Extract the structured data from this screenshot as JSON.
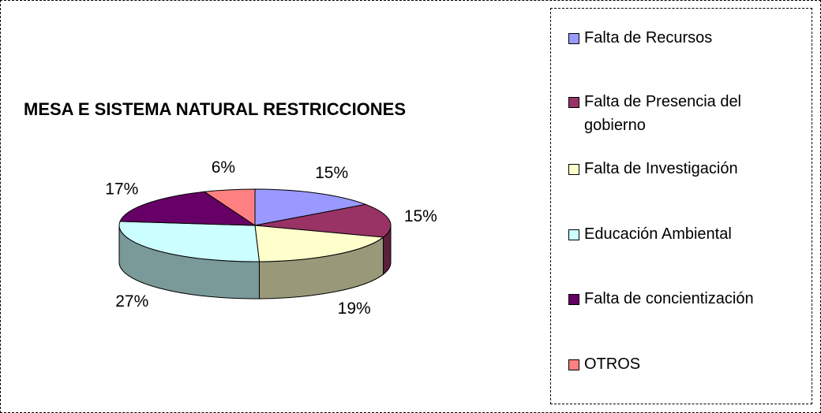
{
  "chart_data": {
    "type": "pie",
    "title": "MESA E SISTEMA NATURAL RESTRICCIONES",
    "categories": [
      "Falta de Recursos",
      "Falta de Presencia del gobierno",
      "Falta de Investigación",
      "Educación Ambiental",
      "Falta de concientización",
      "OTROS"
    ],
    "values": [
      15,
      15,
      19,
      27,
      17,
      6
    ],
    "value_labels": [
      "15%",
      "15%",
      "19%",
      "27%",
      "17%",
      "6%"
    ],
    "colors": [
      "#9999ff",
      "#993366",
      "#ffffcc",
      "#ccffff",
      "#660066",
      "#ff8080"
    ]
  }
}
